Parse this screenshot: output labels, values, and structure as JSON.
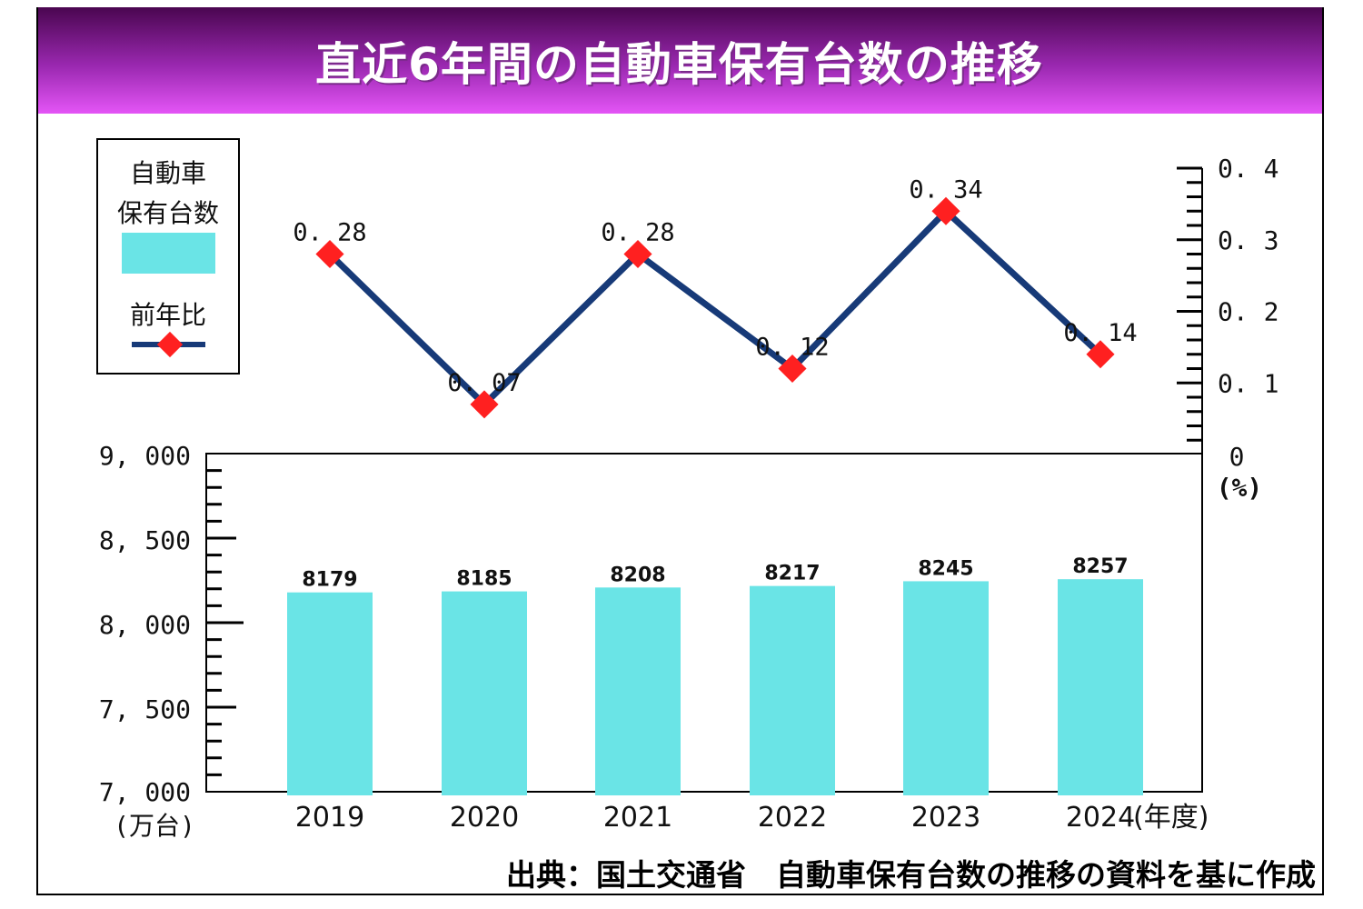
{
  "title": "直近6年間の自動車保有台数の推移",
  "source": "出典：国土交通省　自動車保有台数の推移の資料を基に作成",
  "colors": {
    "bar": "#6ae4e6",
    "line": "#173a78",
    "marker": "#ff2020",
    "title_top": "#4a0650",
    "title_bottom": "#e455f6"
  },
  "legend": {
    "bar_label_line1": "自動車",
    "bar_label_line2": "保有台数",
    "line_label": "前年比"
  },
  "chart_data": {
    "type": "bar+line",
    "title": "直近6年間の自動車保有台数の推移",
    "categories": [
      "2019",
      "2020",
      "2021",
      "2022",
      "2023",
      "2024"
    ],
    "x_unit": "(年度)",
    "series": [
      {
        "name": "自動車保有台数",
        "type": "bar",
        "axis": "left",
        "values": [
          8179,
          8185,
          8208,
          8217,
          8245,
          8257
        ],
        "value_labels": [
          "8179",
          "8185",
          "8208",
          "8217",
          "8245",
          "8257"
        ]
      },
      {
        "name": "前年比",
        "type": "line",
        "axis": "right",
        "values": [
          0.28,
          0.07,
          0.28,
          0.12,
          0.34,
          0.14
        ],
        "value_labels": [
          "0. 28",
          "0. 07",
          "0. 28",
          "0. 12",
          "0. 34",
          "0. 14"
        ]
      }
    ],
    "left_axis": {
      "unit": "(万台)",
      "ylim": [
        7000,
        9000
      ],
      "ticks": [
        "7, 000",
        "7, 500",
        "8, 000",
        "8, 500",
        "9, 000"
      ]
    },
    "right_axis": {
      "unit": "(%)",
      "ylim": [
        0,
        0.4
      ],
      "ticks": [
        "0",
        "0. 1",
        "0. 2",
        "0. 3",
        "0. 4"
      ]
    },
    "legend_position": "top-left",
    "grid": false
  }
}
